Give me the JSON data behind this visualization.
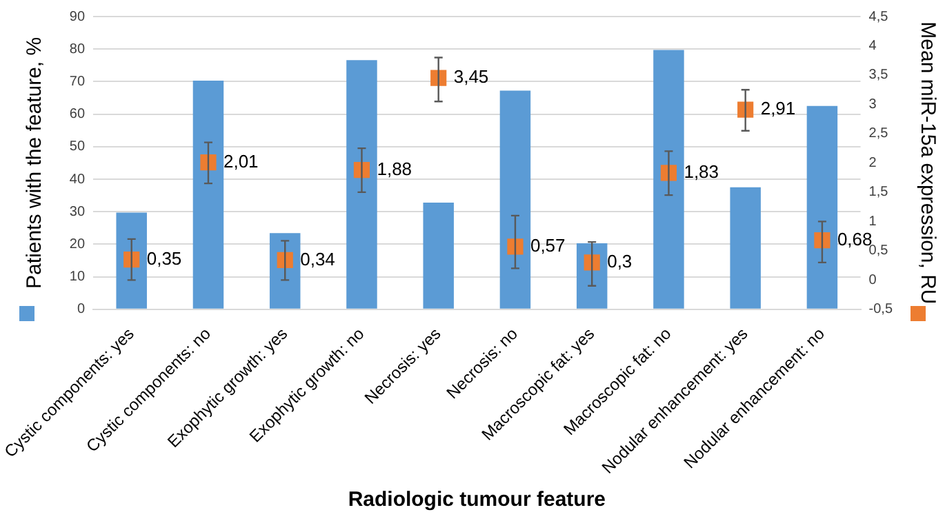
{
  "chart_data": {
    "type": "bar",
    "xlabel": "Radiologic tumour feature",
    "ylabel": "Patients with the feature, %",
    "y2label": "Mean miR-15a expression, RU",
    "categories": [
      "Cystic components: yes",
      "Cystic components: no",
      "Exophytic growth: yes",
      "Exophytic growth: no",
      "Necrosis: yes",
      "Necrosis: no",
      "Macroscopic fat: yes",
      "Macroscopic fat: no",
      "Nodular enhancement: yes",
      "Nodular enhancement: no"
    ],
    "series": [
      {
        "color": "#5b9bd5",
        "values": [
          29.7,
          70.3,
          23.4,
          76.6,
          32.8,
          67.2,
          20.3,
          79.7,
          37.5,
          62.5
        ]
      },
      {
        "type": "scatter",
        "axis": "y2",
        "color": "#ed7d31",
        "marker": "square",
        "values": [
          0.35,
          2.01,
          0.34,
          1.88,
          3.45,
          0.57,
          0.3,
          1.83,
          2.91,
          0.68
        ],
        "value_labels": [
          "0,35",
          "2,01",
          "0,34",
          "1,88",
          "3,45",
          "0,57",
          "0,3",
          "1,83",
          "2,91",
          "0,68"
        ],
        "errors": [
          [
            0,
            0.7
          ],
          [
            1.65,
            2.35
          ],
          [
            0,
            0.67
          ],
          [
            1.5,
            2.25
          ],
          [
            3.05,
            3.8
          ],
          [
            0.2,
            1.1
          ],
          [
            -0.1,
            0.65
          ],
          [
            1.45,
            2.2
          ],
          [
            2.55,
            3.25
          ],
          [
            0.3,
            1.0
          ]
        ]
      }
    ],
    "ylim": [
      0,
      90
    ],
    "yticks": [
      0,
      10,
      20,
      30,
      40,
      50,
      60,
      70,
      80,
      90
    ],
    "y2lim": [
      -0.5,
      4.5
    ],
    "y2ticks": [
      {
        "value": -0.5,
        "label": "-0,5"
      },
      0,
      {
        "value": 0.5,
        "label": "0,5"
      },
      1,
      {
        "value": 1.5,
        "label": "1,5"
      },
      2,
      {
        "value": 2.5,
        "label": "2,5"
      },
      3,
      {
        "value": 3.5,
        "label": "3,5"
      },
      4,
      {
        "value": 4.5,
        "label": "4,5"
      }
    ],
    "grid": "y",
    "legend": false
  }
}
